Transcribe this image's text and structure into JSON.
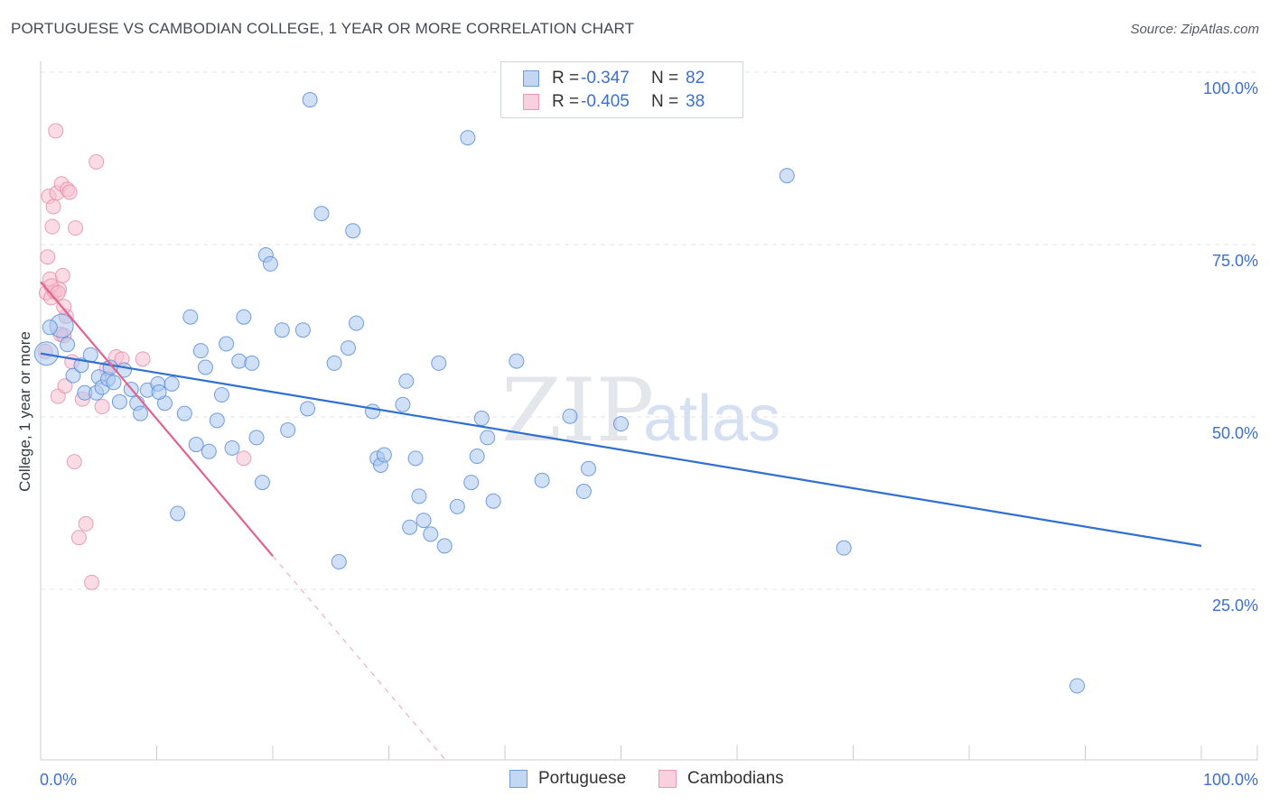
{
  "header": {
    "title": "PORTUGUESE VS CAMBODIAN COLLEGE, 1 YEAR OR MORE CORRELATION CHART",
    "source": "Source: ZipAtlas.com"
  },
  "watermark": {
    "zip": "ZIP",
    "atlas": "atlas"
  },
  "colors": {
    "portuguese_fill": "#a9c7f0",
    "portuguese_stroke": "#5b8ed8",
    "portuguese_line": "#2f6fd0",
    "cambodian_fill": "#f7bfd0",
    "cambodian_stroke": "#e58aa8",
    "cambodian_line": "#e0628f",
    "accent_text": "#3b6fd6"
  },
  "legend_top": {
    "rows": [
      {
        "r_label": "R =",
        "r_value": "-0.347",
        "n_label": "N =",
        "n_value": "82"
      },
      {
        "r_label": "R =",
        "r_value": "-0.405",
        "n_label": "N =",
        "n_value": "38"
      }
    ]
  },
  "legend_bottom": {
    "items": [
      "Portuguese",
      "Cambodians"
    ]
  },
  "chart_data": {
    "type": "scatter",
    "title": "PORTUGUESE VS CAMBODIAN COLLEGE, 1 YEAR OR MORE CORRELATION CHART",
    "xlabel": "",
    "ylabel": "College, 1 year or more",
    "xlim": [
      0,
      100
    ],
    "ylim": [
      0,
      102
    ],
    "x_tick_labels": [
      "0.0%",
      "100.0%"
    ],
    "y_ticks": [
      25,
      50,
      75,
      100
    ],
    "y_tick_labels": [
      "25.0%",
      "50.0%",
      "75.0%",
      "100.0%"
    ],
    "grid": true,
    "legend": "top-center",
    "series": [
      {
        "name": "Portuguese",
        "R": -0.347,
        "N": 82,
        "trend": {
          "x": [
            0,
            100
          ],
          "y": [
            59.2,
            31.3
          ],
          "solid_to_x": 100
        },
        "points": [
          [
            0.5,
            59.2
          ],
          [
            1.8,
            63.2
          ],
          [
            2.3,
            60.5
          ],
          [
            2.8,
            56.0
          ],
          [
            3.5,
            57.5
          ],
          [
            3.8,
            53.5
          ],
          [
            4.3,
            59.0
          ],
          [
            4.8,
            53.5
          ],
          [
            5.0,
            55.8
          ],
          [
            5.3,
            54.3
          ],
          [
            5.8,
            55.5
          ],
          [
            6.3,
            55.0
          ],
          [
            6.8,
            52.2
          ],
          [
            7.2,
            56.8
          ],
          [
            7.8,
            54.0
          ],
          [
            8.3,
            52.0
          ],
          [
            8.6,
            50.5
          ],
          [
            9.2,
            53.9
          ],
          [
            10.1,
            54.8
          ],
          [
            10.7,
            52.0
          ],
          [
            11.3,
            54.8
          ],
          [
            11.8,
            36.0
          ],
          [
            12.4,
            50.5
          ],
          [
            12.9,
            64.5
          ],
          [
            13.4,
            46.0
          ],
          [
            13.8,
            59.6
          ],
          [
            14.2,
            57.2
          ],
          [
            14.5,
            45.0
          ],
          [
            15.2,
            49.5
          ],
          [
            15.6,
            53.2
          ],
          [
            16.0,
            60.6
          ],
          [
            16.5,
            45.5
          ],
          [
            17.1,
            58.1
          ],
          [
            17.5,
            64.5
          ],
          [
            18.2,
            57.8
          ],
          [
            18.6,
            47.0
          ],
          [
            19.1,
            40.5
          ],
          [
            19.4,
            73.5
          ],
          [
            19.8,
            72.2
          ],
          [
            20.8,
            62.6
          ],
          [
            21.3,
            48.1
          ],
          [
            22.6,
            62.6
          ],
          [
            23.0,
            51.2
          ],
          [
            23.2,
            96.0
          ],
          [
            24.2,
            79.5
          ],
          [
            25.3,
            57.8
          ],
          [
            25.7,
            29.0
          ],
          [
            26.5,
            60.0
          ],
          [
            26.9,
            77.0
          ],
          [
            27.2,
            63.6
          ],
          [
            28.6,
            50.8
          ],
          [
            29.0,
            44.0
          ],
          [
            29.3,
            43.0
          ],
          [
            29.6,
            44.5
          ],
          [
            31.2,
            51.8
          ],
          [
            31.5,
            55.2
          ],
          [
            31.8,
            34.0
          ],
          [
            32.3,
            44.0
          ],
          [
            32.6,
            38.5
          ],
          [
            33.0,
            35.0
          ],
          [
            33.6,
            33.0
          ],
          [
            34.3,
            57.8
          ],
          [
            34.8,
            31.3
          ],
          [
            35.9,
            37.0
          ],
          [
            36.8,
            90.5
          ],
          [
            37.1,
            40.5
          ],
          [
            37.6,
            44.3
          ],
          [
            38.0,
            49.8
          ],
          [
            38.5,
            47.0
          ],
          [
            39.0,
            37.8
          ],
          [
            41.0,
            58.1
          ],
          [
            43.2,
            40.8
          ],
          [
            45.6,
            50.1
          ],
          [
            46.8,
            39.2
          ],
          [
            47.2,
            42.5
          ],
          [
            50.0,
            49.0
          ],
          [
            64.3,
            85.0
          ],
          [
            69.2,
            31.0
          ],
          [
            89.3,
            11.0
          ],
          [
            0.8,
            63.0
          ],
          [
            6.0,
            57.2
          ],
          [
            10.2,
            53.6
          ]
        ]
      },
      {
        "name": "Cambodians",
        "R": -0.405,
        "N": 38,
        "trend": {
          "x": [
            0,
            35
          ],
          "y": [
            69.6,
            0
          ],
          "solid_to_x": 20
        },
        "points": [
          [
            0.4,
            59.5
          ],
          [
            0.5,
            68.0
          ],
          [
            0.6,
            73.2
          ],
          [
            0.7,
            82.0
          ],
          [
            0.8,
            70.0
          ],
          [
            0.9,
            67.3
          ],
          [
            1.0,
            77.6
          ],
          [
            1.1,
            80.5
          ],
          [
            1.2,
            68.2
          ],
          [
            1.3,
            91.5
          ],
          [
            1.4,
            82.5
          ],
          [
            1.5,
            53.0
          ],
          [
            1.6,
            68.5
          ],
          [
            1.7,
            62.0
          ],
          [
            1.8,
            83.8
          ],
          [
            1.9,
            70.5
          ],
          [
            2.0,
            61.8
          ],
          [
            2.1,
            54.5
          ],
          [
            2.2,
            64.6
          ],
          [
            2.3,
            83.0
          ],
          [
            2.5,
            82.6
          ],
          [
            2.7,
            58.0
          ],
          [
            2.9,
            43.5
          ],
          [
            3.0,
            77.4
          ],
          [
            3.3,
            32.5
          ],
          [
            3.6,
            52.6
          ],
          [
            3.9,
            34.5
          ],
          [
            4.4,
            26.0
          ],
          [
            4.8,
            87.0
          ],
          [
            5.3,
            51.5
          ],
          [
            5.7,
            57.0
          ],
          [
            6.5,
            58.7
          ],
          [
            7.0,
            58.4
          ],
          [
            8.8,
            58.4
          ],
          [
            17.5,
            44.0
          ],
          [
            0.9,
            69.0
          ],
          [
            1.5,
            68.0
          ],
          [
            2.0,
            66.0
          ]
        ]
      }
    ]
  }
}
